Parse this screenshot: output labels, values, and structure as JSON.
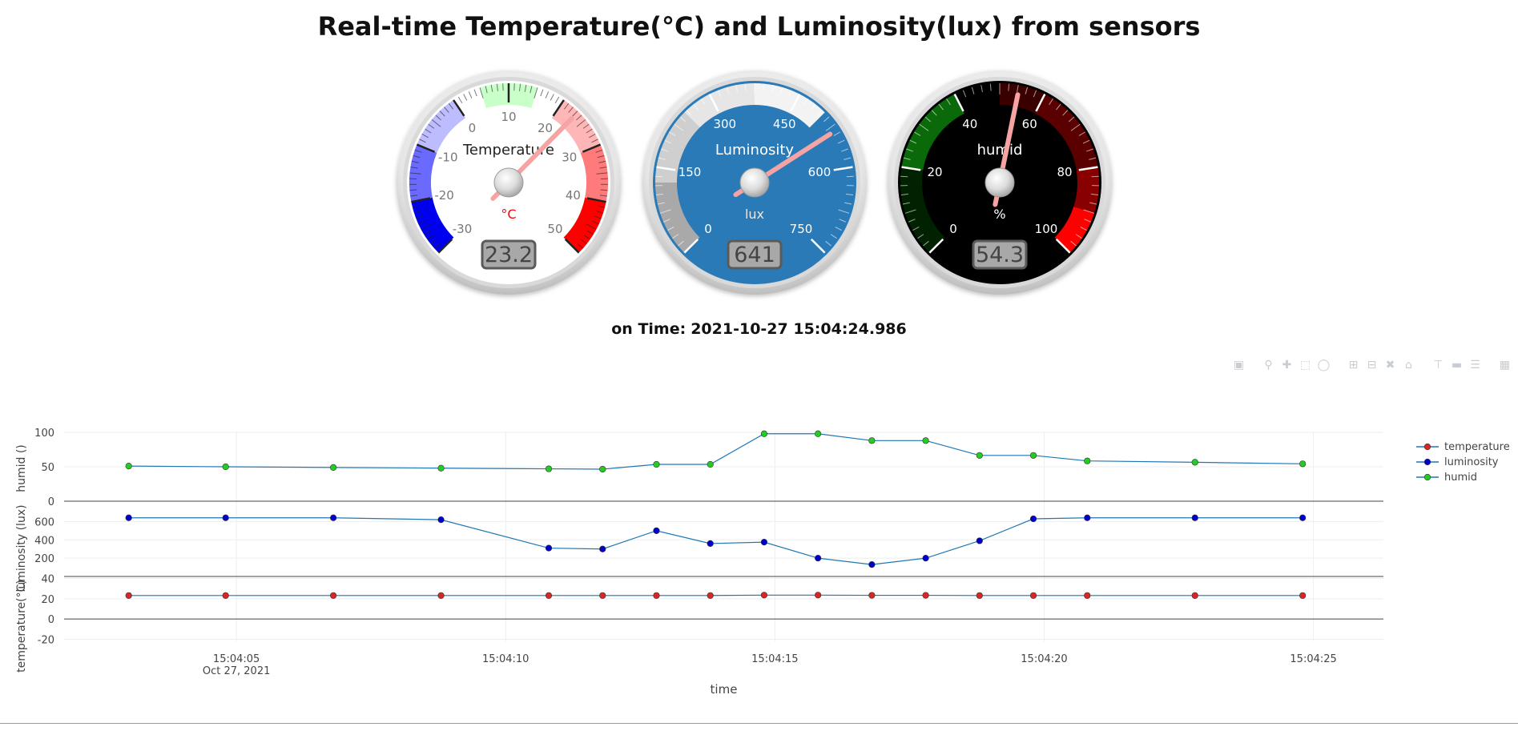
{
  "title": "Real-time Temperature(°C) and Luminosity(lux) from sensors",
  "timestamp": {
    "label": "on Time:",
    "value": "2021-10-27 15:04:24.986"
  },
  "gauges": [
    {
      "name": "temperature-gauge",
      "label": "Temperature",
      "unit": "°C",
      "value": 23.2,
      "display": "23.2",
      "min": -30,
      "max": 50,
      "ticks": [
        "-30",
        "-20",
        "-10",
        "0",
        "10",
        "20",
        "30",
        "40",
        "50"
      ],
      "theme": "light",
      "colors": {
        "face": "#ffffff",
        "text": "#777777",
        "title": "#222222",
        "unit": "#ff0000",
        "needle": "#f5a3a3"
      },
      "bands": [
        {
          "from": -30,
          "to": -20,
          "color": "#0000ee"
        },
        {
          "from": -20,
          "to": -10,
          "color": "#6a6aff"
        },
        {
          "from": -10,
          "to": 0,
          "color": "#bcbcff"
        },
        {
          "from": 5,
          "to": 15,
          "color": "#c9ffc9"
        },
        {
          "from": 20,
          "to": 30,
          "color": "#ffb6b6"
        },
        {
          "from": 30,
          "to": 40,
          "color": "#ff7a7a"
        },
        {
          "from": 40,
          "to": 50,
          "color": "#ff0000"
        }
      ]
    },
    {
      "name": "luminosity-gauge",
      "label": "Luminosity",
      "unit": "lux",
      "value": 641,
      "display": "641",
      "min": 0,
      "max": 900,
      "ticks": [
        "0",
        "150",
        "300",
        "450",
        "600",
        "750"
      ],
      "theme": "blue",
      "colors": {
        "face": "#2a7ab8",
        "text": "#ffffff",
        "title": "#ffffff",
        "unit": "#e8e8e8",
        "needle": "#f5a3a3"
      },
      "bands": [
        {
          "from": 0,
          "to": 150,
          "color": "#a9a9a9"
        },
        {
          "from": 150,
          "to": 300,
          "color": "#cfcfcf"
        },
        {
          "from": 300,
          "to": 450,
          "color": "#e6e6e6"
        },
        {
          "from": 450,
          "to": 600,
          "color": "#f3f3f3"
        }
      ]
    },
    {
      "name": "humid-gauge",
      "label": "humid",
      "unit": "%",
      "value": 54.3,
      "display": "54.3",
      "min": 0,
      "max": 100,
      "ticks": [
        "0",
        "20",
        "40",
        "60",
        "80",
        "100"
      ],
      "theme": "dark",
      "colors": {
        "face": "#000000",
        "text": "#ffffff",
        "title": "#ffffff",
        "unit": "#ffffff",
        "needle": "#f5a3a3"
      },
      "bands": [
        {
          "from": 0,
          "to": 20,
          "color": "#002200"
        },
        {
          "from": 20,
          "to": 40,
          "color": "#0a6a0a"
        },
        {
          "from": 50,
          "to": 60,
          "color": "#3a0000"
        },
        {
          "from": 60,
          "to": 80,
          "color": "#5a0000"
        },
        {
          "from": 80,
          "to": 90,
          "color": "#880000"
        },
        {
          "from": 90,
          "to": 100,
          "color": "#ff0000"
        }
      ]
    }
  ],
  "modebar": [
    "camera-icon",
    "zoom-icon",
    "pan-icon",
    "box-select-icon",
    "lasso-icon",
    "zoom-in-icon",
    "zoom-out-icon",
    "autoscale-icon",
    "reset-axes-icon",
    "spike-lines-icon",
    "hover-closest-icon",
    "hover-compare-icon",
    "plotly-logo-icon"
  ],
  "chart_data": {
    "type": "line",
    "x": [
      "15:04:03.0",
      "15:04:04.8",
      "15:04:06.8",
      "15:04:08.8",
      "15:04:10.8",
      "15:04:11.8",
      "15:04:12.8",
      "15:04:13.8",
      "15:04:14.8",
      "15:04:15.8",
      "15:04:16.8",
      "15:04:17.8",
      "15:04:18.8",
      "15:04:19.8",
      "15:04:20.8",
      "15:04:22.8",
      "15:04:24.8"
    ],
    "x_seconds": [
      3.0,
      4.8,
      6.8,
      8.8,
      10.8,
      11.8,
      12.8,
      13.8,
      14.8,
      15.8,
      16.8,
      17.8,
      18.8,
      19.8,
      20.8,
      22.8,
      24.8
    ],
    "x_ticks": [
      "15:04:05",
      "15:04:10",
      "15:04:15",
      "15:04:20",
      "15:04:25"
    ],
    "x_tick_seconds": [
      5,
      10,
      15,
      20,
      25
    ],
    "x_date_label": "Oct 27, 2021",
    "xlim_seconds": [
      1.8,
      26.3
    ],
    "xlabel": "time",
    "line_color": "#1f77b4",
    "series": [
      {
        "name": "temperature",
        "marker_color": "#d62728",
        "ylabel": "temperature(°C)",
        "ylim": [
          -22,
          42
        ],
        "y_ticks": [
          -20,
          0,
          20,
          40
        ],
        "values": [
          23.2,
          23.2,
          23.2,
          23.2,
          23.2,
          23.2,
          23.2,
          23.2,
          23.6,
          23.6,
          23.4,
          23.4,
          23.2,
          23.2,
          23.2,
          23.2,
          23.2
        ]
      },
      {
        "name": "luminosity",
        "marker_color": "#0000cc",
        "ylabel": "luminosity (lux)",
        "ylim": [
          0,
          700
        ],
        "y_ticks": [
          200,
          400,
          600
        ],
        "values": [
          641,
          641,
          641,
          620,
          310,
          300,
          500,
          360,
          375,
          200,
          130,
          200,
          390,
          630,
          641,
          641,
          641
        ]
      },
      {
        "name": "humid",
        "marker_color": "#22cc22",
        "ylabel": "humid ()",
        "ylim": [
          0,
          100
        ],
        "y_ticks": [
          0,
          50,
          100
        ],
        "values": [
          51,
          50,
          49,
          48,
          47,
          46.5,
          53.5,
          53.5,
          98,
          98,
          88,
          88,
          66.5,
          66.5,
          58.5,
          56.5,
          54.3
        ]
      }
    ],
    "legend": [
      "temperature",
      "luminosity",
      "humid"
    ],
    "legend_position": "top-right",
    "grid": true
  }
}
